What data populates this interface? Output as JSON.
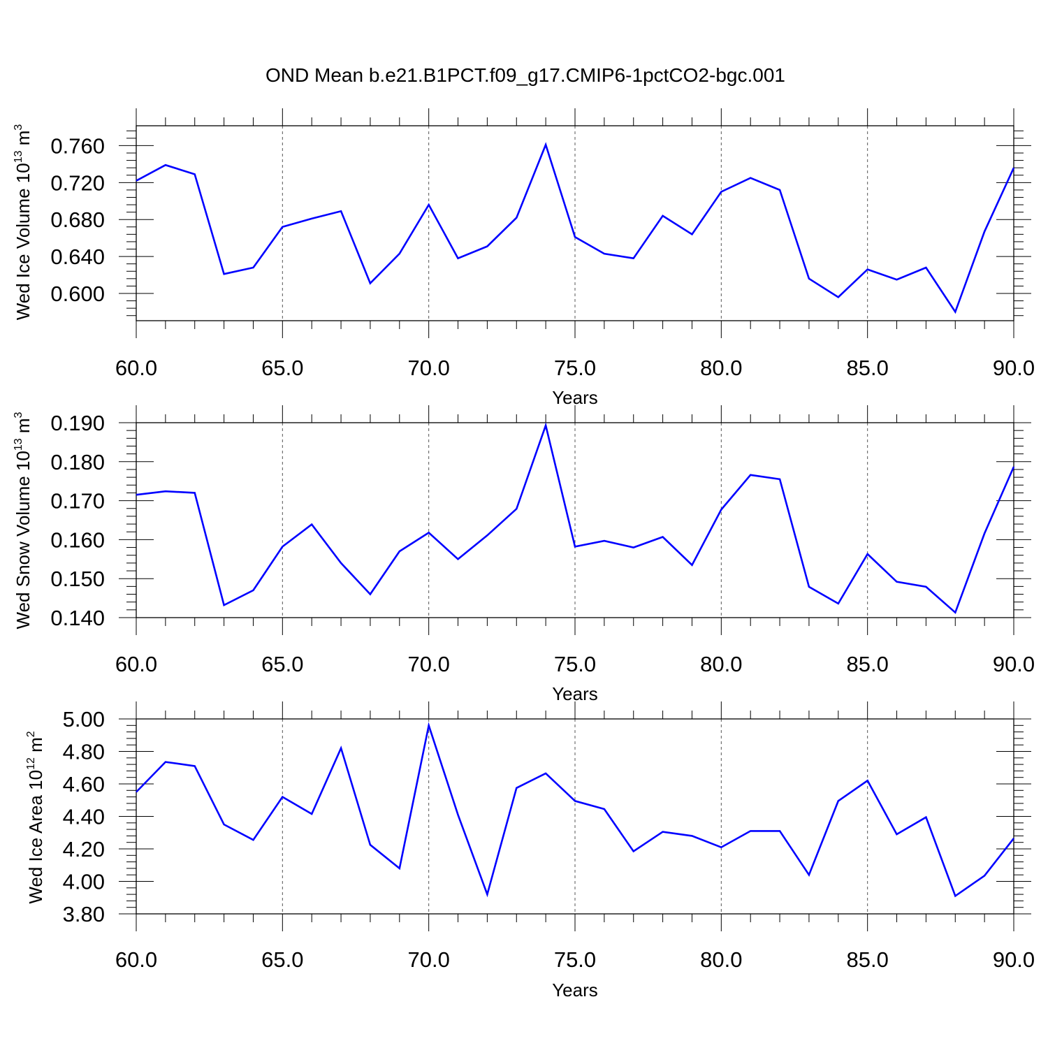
{
  "figure": {
    "title": "OND Mean b.e21.B1PCT.f09_g17.CMIP6-1pctCO2-bgc.001",
    "line_color": "#0000ff"
  },
  "chart_data": [
    {
      "type": "line",
      "xlabel": "Years",
      "ylabel": {
        "text": "Wed Ice Volume 10",
        "exponent": "13",
        "unit": "m",
        "unit_exponent": "3"
      },
      "xlim": [
        60,
        90
      ],
      "ylim": [
        0.5705,
        0.7815
      ],
      "x_ticks": [
        60,
        65,
        70,
        75,
        80,
        85,
        90
      ],
      "x_tick_labels": [
        "60.0",
        "65.0",
        "70.0",
        "75.0",
        "80.0",
        "85.0",
        "90.0"
      ],
      "y_ticks": [
        0.6,
        0.64,
        0.68,
        0.72,
        0.76
      ],
      "y_tick_labels": [
        "0.600",
        "0.640",
        "0.680",
        "0.720",
        "0.760"
      ],
      "x_minor_step": 1,
      "y_minor_step": 0.008,
      "grid": "dashed vertical at major x ticks",
      "x": [
        60,
        61,
        62,
        63,
        64,
        65,
        66,
        67,
        68,
        69,
        70,
        71,
        72,
        73,
        74,
        75,
        76,
        77,
        78,
        79,
        80,
        81,
        82,
        83,
        84,
        85,
        86,
        87,
        88,
        89,
        90
      ],
      "values": [
        0.722,
        0.739,
        0.729,
        0.621,
        0.628,
        0.672,
        0.681,
        0.689,
        0.611,
        0.643,
        0.696,
        0.638,
        0.651,
        0.682,
        0.761,
        0.661,
        0.643,
        0.638,
        0.684,
        0.664,
        0.71,
        0.725,
        0.712,
        0.616,
        0.596,
        0.626,
        0.615,
        0.628,
        0.58,
        0.667,
        0.736
      ]
    },
    {
      "type": "line",
      "xlabel": "Years",
      "ylabel": {
        "text": "Wed Snow Volume 10",
        "exponent": "13",
        "unit": "m",
        "unit_exponent": "3"
      },
      "xlim": [
        60,
        90
      ],
      "ylim": [
        0.14,
        0.19
      ],
      "x_ticks": [
        60,
        65,
        70,
        75,
        80,
        85,
        90
      ],
      "x_tick_labels": [
        "60.0",
        "65.0",
        "70.0",
        "75.0",
        "80.0",
        "85.0",
        "90.0"
      ],
      "y_ticks": [
        0.14,
        0.15,
        0.16,
        0.17,
        0.18,
        0.19
      ],
      "y_tick_labels": [
        "0.140",
        "0.150",
        "0.160",
        "0.170",
        "0.180",
        "0.190"
      ],
      "x_minor_step": 1,
      "y_minor_step": 0.002,
      "grid": "dashed vertical at major x ticks",
      "x": [
        60,
        61,
        62,
        63,
        64,
        65,
        66,
        67,
        68,
        69,
        70,
        71,
        72,
        73,
        74,
        75,
        76,
        77,
        78,
        79,
        80,
        81,
        82,
        83,
        84,
        85,
        86,
        87,
        88,
        89,
        90
      ],
      "values": [
        0.1715,
        0.1724,
        0.172,
        0.1432,
        0.147,
        0.1582,
        0.1639,
        0.154,
        0.146,
        0.157,
        0.1618,
        0.155,
        0.1611,
        0.1679,
        0.1893,
        0.1582,
        0.1597,
        0.158,
        0.1607,
        0.1535,
        0.1677,
        0.1766,
        0.1755,
        0.1479,
        0.1436,
        0.1563,
        0.1492,
        0.1479,
        0.1413,
        0.1616,
        0.1787
      ]
    },
    {
      "type": "line",
      "xlabel": "Years",
      "ylabel": {
        "text": "Wed Ice Area 10",
        "exponent": "12",
        "unit": "m",
        "unit_exponent": "2"
      },
      "xlim": [
        60,
        90
      ],
      "ylim": [
        3.8,
        5.0
      ],
      "x_ticks": [
        60,
        65,
        70,
        75,
        80,
        85,
        90
      ],
      "x_tick_labels": [
        "60.0",
        "65.0",
        "70.0",
        "75.0",
        "80.0",
        "85.0",
        "90.0"
      ],
      "y_ticks": [
        3.8,
        4.0,
        4.2,
        4.4,
        4.6,
        4.8,
        5.0
      ],
      "y_tick_labels": [
        "3.80",
        "4.00",
        "4.20",
        "4.40",
        "4.60",
        "4.80",
        "5.00"
      ],
      "x_minor_step": 1,
      "y_minor_step": 0.04,
      "grid": "dashed vertical at major x ticks",
      "x": [
        60,
        61,
        62,
        63,
        64,
        65,
        66,
        67,
        68,
        69,
        70,
        71,
        72,
        73,
        74,
        75,
        76,
        77,
        78,
        79,
        80,
        81,
        82,
        83,
        84,
        85,
        86,
        87,
        88,
        89,
        90
      ],
      "values": [
        4.55,
        4.735,
        4.71,
        4.35,
        4.255,
        4.52,
        4.415,
        4.82,
        4.225,
        4.08,
        4.96,
        4.41,
        3.92,
        4.575,
        4.665,
        4.495,
        4.445,
        4.185,
        4.305,
        4.28,
        4.21,
        4.31,
        4.31,
        4.04,
        4.495,
        4.62,
        4.29,
        4.395,
        3.91,
        4.035,
        4.265
      ]
    }
  ]
}
